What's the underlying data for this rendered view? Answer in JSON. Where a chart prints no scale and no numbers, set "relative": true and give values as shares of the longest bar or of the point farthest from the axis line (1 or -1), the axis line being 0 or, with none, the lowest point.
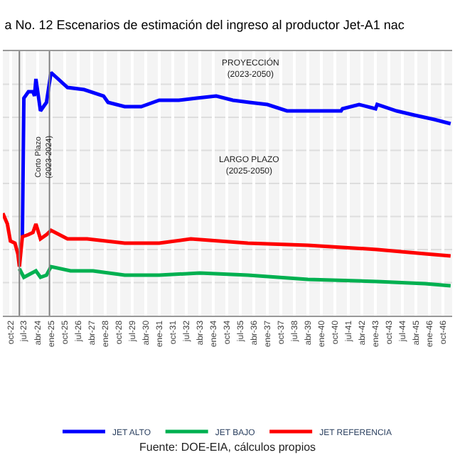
{
  "chart_data": {
    "type": "line",
    "title": "a No. 12 Escenarios de estimación del ingreso al productor Jet-A1 nac",
    "relative": true,
    "xlim": [
      "2022-05",
      "2047-04"
    ],
    "xticks": [
      {
        "value": "2022-10",
        "label": "oct-22"
      },
      {
        "value": "2023-07",
        "label": "jul-23"
      },
      {
        "value": "2024-04",
        "label": "abr-24"
      },
      {
        "value": "2025-01",
        "label": "ene-25"
      },
      {
        "value": "2025-10",
        "label": "oct-25"
      },
      {
        "value": "2026-07",
        "label": "jul-26"
      },
      {
        "value": "2027-04",
        "label": "abr-27"
      },
      {
        "value": "2028-01",
        "label": "ene-28"
      },
      {
        "value": "2028-10",
        "label": "oct-28"
      },
      {
        "value": "2029-07",
        "label": "jul-29"
      },
      {
        "value": "2030-04",
        "label": "abr-30"
      },
      {
        "value": "2031-01",
        "label": "ene-31"
      },
      {
        "value": "2031-10",
        "label": "oct-31"
      },
      {
        "value": "2032-07",
        "label": "jul-32"
      },
      {
        "value": "2033-04",
        "label": "abr-33"
      },
      {
        "value": "2034-01",
        "label": "ene-34"
      },
      {
        "value": "2034-10",
        "label": "oct-34"
      },
      {
        "value": "2035-07",
        "label": "jul-35"
      },
      {
        "value": "2036-04",
        "label": "abr-36"
      },
      {
        "value": "2037-01",
        "label": "ene-37"
      },
      {
        "value": "2037-10",
        "label": "oct-37"
      },
      {
        "value": "2038-07",
        "label": "jul-38"
      },
      {
        "value": "2039-04",
        "label": "abr-39"
      },
      {
        "value": "2040-01",
        "label": "ene-40"
      },
      {
        "value": "2040-10",
        "label": "oct-40"
      },
      {
        "value": "2041-07",
        "label": "jul-41"
      },
      {
        "value": "2042-04",
        "label": "abr-42"
      },
      {
        "value": "2043-01",
        "label": "ene-43"
      },
      {
        "value": "2043-10",
        "label": "oct-43"
      },
      {
        "value": "2044-07",
        "label": "jul-44"
      },
      {
        "value": "2045-04",
        "label": "abr-45"
      },
      {
        "value": "2046-01",
        "label": "ene-46"
      },
      {
        "value": "2046-10",
        "label": "oct-46"
      }
    ],
    "series": [
      {
        "name": "JET ALTO",
        "color": "#0000ff",
        "x": [
          "2023-06",
          "2023-07",
          "2023-10",
          "2024-01",
          "2024-02",
          "2024-03",
          "2024-06",
          "2024-10",
          "2025-01",
          "2025-12",
          "2026-11",
          "2027-12",
          "2028-03",
          "2029-02",
          "2030-01",
          "2031-01",
          "2032-02",
          "2033-02",
          "2034-03",
          "2035-02",
          "2036-01",
          "2037-01",
          "2038-02",
          "2039-04",
          "2041-02",
          "2041-03",
          "2042-02",
          "2043-01",
          "2043-02",
          "2044-03",
          "2045-03",
          "2046-04",
          "2047-03"
        ],
        "values": [
          0.23,
          0.88,
          0.91,
          0.91,
          0.89,
          0.97,
          0.82,
          0.86,
          1.0,
          0.93,
          0.92,
          0.89,
          0.86,
          0.84,
          0.84,
          0.87,
          0.87,
          0.88,
          0.89,
          0.87,
          0.86,
          0.85,
          0.82,
          0.82,
          0.82,
          0.83,
          0.85,
          0.83,
          0.85,
          0.82,
          0.8,
          0.78,
          0.76
        ]
      },
      {
        "name": "JET BAJO",
        "color": "#00b050",
        "x": [
          "2023-04",
          "2023-07",
          "2024-03",
          "2024-06",
          "2024-10",
          "2025-01",
          "2026-02",
          "2027-05",
          "2029-02",
          "2031-01",
          "2033-04",
          "2035-12",
          "2039-04",
          "2043-02",
          "2045-10",
          "2047-03"
        ],
        "values": [
          0.08,
          0.04,
          0.07,
          0.04,
          0.05,
          0.09,
          0.07,
          0.07,
          0.05,
          0.05,
          0.06,
          0.05,
          0.03,
          0.02,
          0.01,
          0.0
        ]
      },
      {
        "name": "JET REFERENCIA",
        "color": "#ff0000",
        "x": [
          "2022-05",
          "2022-08",
          "2022-10",
          "2023-01",
          "2023-03",
          "2023-04",
          "2023-06",
          "2023-10",
          "2024-01",
          "2024-03",
          "2024-06",
          "2024-10",
          "2025-01",
          "2025-12",
          "2027-01",
          "2029-02",
          "2031-01",
          "2032-10",
          "2035-12",
          "2039-04",
          "2043-02",
          "2045-10",
          "2047-03"
        ],
        "values": [
          0.34,
          0.29,
          0.21,
          0.2,
          0.15,
          0.09,
          0.23,
          0.24,
          0.25,
          0.29,
          0.22,
          0.24,
          0.26,
          0.22,
          0.22,
          0.2,
          0.2,
          0.22,
          0.2,
          0.19,
          0.17,
          0.15,
          0.14
        ]
      }
    ],
    "ref_lines": [
      {
        "axis": "x",
        "value": "2023-04",
        "color": "#808080"
      },
      {
        "axis": "x",
        "value": "2024-12",
        "color": "#808080"
      }
    ],
    "annotations": [
      "PROYECCIÓN\n(2023-2050)",
      "LARGO PLAZO\n(2025-2050)",
      "Corto Plazo\n(2023-2024)",
      "Fuente: DOE-EIA, cálculos propios"
    ],
    "grid": true,
    "legend": "bottom",
    "marker": "none",
    "line_style": "solid"
  }
}
